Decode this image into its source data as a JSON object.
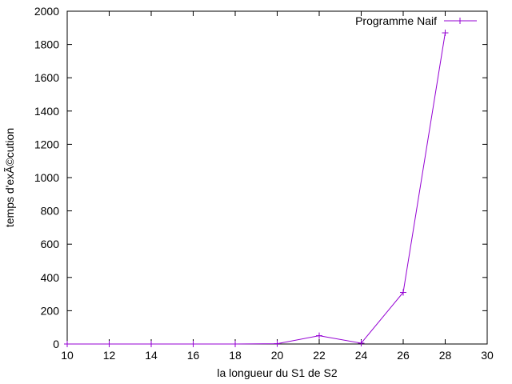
{
  "chart_data": {
    "type": "line",
    "title": "",
    "xlabel": "la longueur du S1 de S2",
    "ylabel": "temps d'exÃ©cution",
    "xlim": [
      10,
      30
    ],
    "ylim": [
      0,
      2000
    ],
    "x_ticks": [
      10,
      12,
      14,
      16,
      18,
      20,
      22,
      24,
      26,
      28,
      30
    ],
    "y_ticks": [
      0,
      200,
      400,
      600,
      800,
      1000,
      1200,
      1400,
      1600,
      1800,
      2000
    ],
    "grid": false,
    "legend_position": "top-right",
    "series": [
      {
        "name": "Programme Naif",
        "color": "#9400d3",
        "marker": "plus",
        "x": [
          10,
          12,
          14,
          16,
          18,
          20,
          22,
          24,
          26,
          28
        ],
        "y": [
          0,
          0,
          0,
          0,
          0,
          2,
          50,
          5,
          310,
          1870
        ]
      }
    ]
  }
}
